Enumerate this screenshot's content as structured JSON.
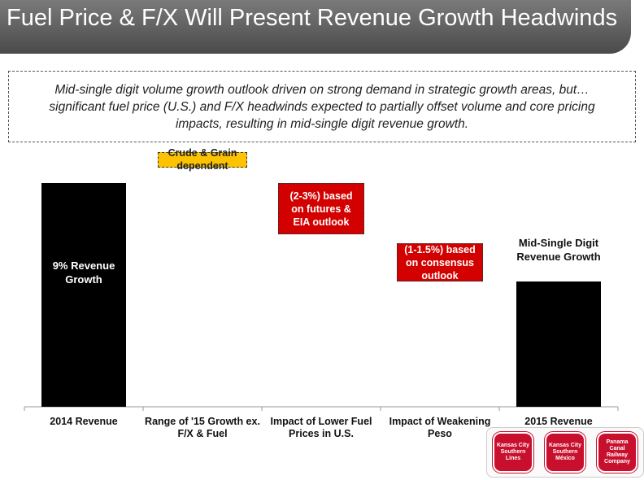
{
  "title": "Fuel Price & F/X Will Present Revenue Growth Headwinds",
  "summary": "Mid-single digit volume growth outlook driven on strong demand in strategic growth areas, but…significant fuel price (U.S.) and F/X headwinds expected to partially offset volume and core pricing impacts, resulting in mid-single digit revenue growth.",
  "chart_data": {
    "type": "bar",
    "subtype": "waterfall",
    "categories": [
      "2014 Revenue",
      "Range of '15 Growth ex. F/X & Fuel",
      "Impact of Lower Fuel Prices in U.S.",
      "Impact of Weakening Peso",
      "2015 Revenue"
    ],
    "bars": [
      {
        "category": "2014 Revenue",
        "kind": "total",
        "value": 100,
        "label": "9% Revenue Growth",
        "color": "#000000"
      },
      {
        "category": "Range of '15 Growth ex. F/X & Fuel",
        "kind": "callout",
        "low": 107,
        "high": 114,
        "label": "Crude & Grain dependent",
        "color": "#fdc300"
      },
      {
        "category": "Impact of Lower Fuel Prices in U.S.",
        "kind": "callout",
        "low": 77,
        "high": 100,
        "label": "(2-3%) based on futures & EIA outlook",
        "color": "#d30000"
      },
      {
        "category": "Impact of Weakening Peso",
        "kind": "callout",
        "low": 56,
        "high": 73,
        "label": "(1-1.5%) based on consensus outlook",
        "color": "#d30000"
      },
      {
        "category": "2015 Revenue",
        "kind": "total",
        "value": 56,
        "label_above": "Mid-Single Digit Revenue Growth",
        "color": "#000000"
      }
    ],
    "ylim": [
      0,
      120
    ],
    "grid": false,
    "legend": "none"
  },
  "logos": [
    {
      "name": "Kansas City Southern Lines",
      "text": "Kansas City Southern Lines"
    },
    {
      "name": "Kansas City Southern de México",
      "text": "Kansas City Southern México"
    },
    {
      "name": "Panama Canal Railway Company",
      "text": "Panama Canal Railway Company"
    }
  ]
}
